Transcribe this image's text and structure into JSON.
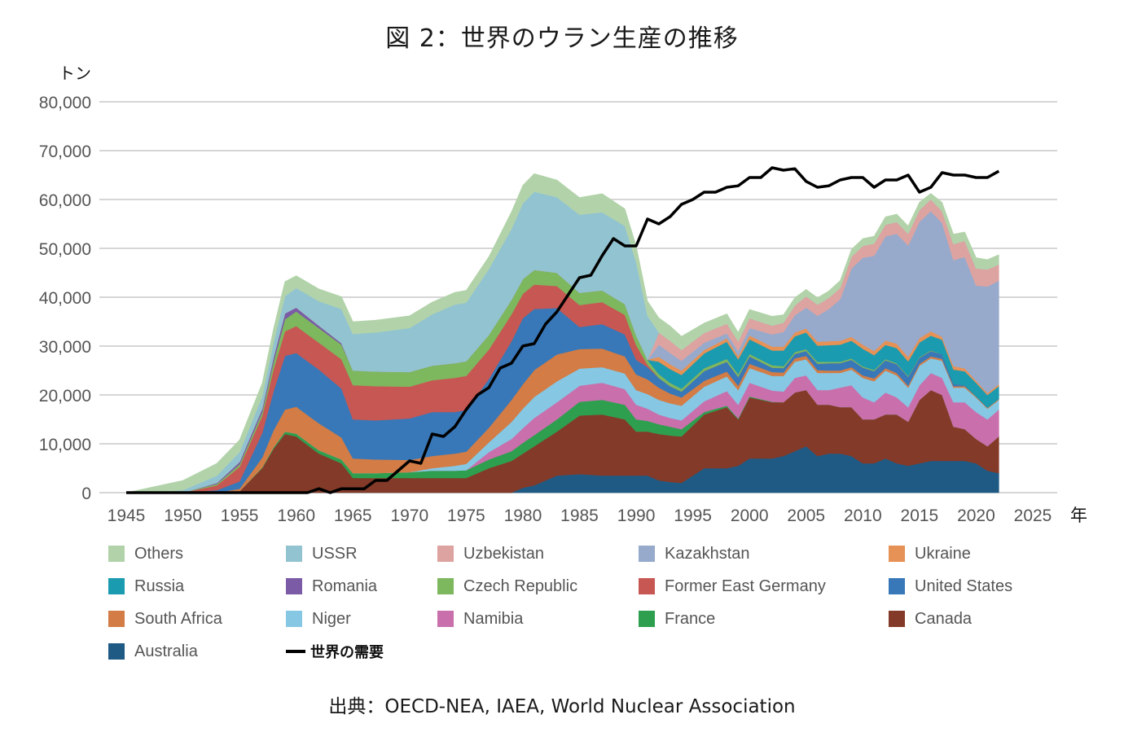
{
  "title": "図 2：世界のウラン生産の推移",
  "source": "出典：OECD-NEA, IAEA, World Nuclear Association",
  "chart_data": {
    "type": "area",
    "stacked": true,
    "title": "図 2：世界のウラン生産の推移",
    "ylabel": "トン",
    "xlabel": "年",
    "ylim": [
      0,
      80000
    ],
    "xlim": [
      1945,
      2025
    ],
    "yticks": [
      "0",
      "10,000",
      "20,000",
      "30,000",
      "40,000",
      "50,000",
      "60,000",
      "70,000",
      "80,000"
    ],
    "ytick_values": [
      0,
      10000,
      20000,
      30000,
      40000,
      50000,
      60000,
      70000,
      80000
    ],
    "xticks": [
      "1945",
      "1950",
      "1955",
      "1960",
      "1965",
      "1970",
      "1975",
      "1980",
      "1985",
      "1990",
      "1995",
      "2000",
      "2005",
      "2010",
      "2015",
      "2020",
      "2025"
    ],
    "xtick_values": [
      1945,
      1950,
      1955,
      1960,
      1965,
      1970,
      1975,
      1980,
      1985,
      1990,
      1995,
      2000,
      2005,
      2010,
      2015,
      2020,
      2025
    ],
    "grid": true,
    "legend_position": "bottom",
    "x": [
      1945,
      1947,
      1950,
      1953,
      1955,
      1957,
      1958,
      1959,
      1960,
      1962,
      1964,
      1965,
      1967,
      1970,
      1972,
      1974,
      1975,
      1977,
      1979,
      1980,
      1981,
      1983,
      1985,
      1987,
      1989,
      1990,
      1991,
      1992,
      1993,
      1994,
      1996,
      1998,
      1999,
      2000,
      2002,
      2003,
      2004,
      2005,
      2006,
      2007,
      2008,
      2009,
      2010,
      2011,
      2012,
      2013,
      2014,
      2015,
      2016,
      2017,
      2018,
      2019,
      2020,
      2021,
      2022
    ],
    "series": [
      {
        "name": "Australia",
        "color": "#1f5a85",
        "values": [
          0,
          0,
          0,
          0,
          0,
          0,
          0,
          0,
          0,
          0,
          0,
          0,
          0,
          0,
          0,
          0,
          0,
          0,
          0,
          1000,
          1500,
          3500,
          3800,
          3500,
          3500,
          3500,
          3500,
          2500,
          2200,
          2000,
          5000,
          5000,
          5500,
          7000,
          7000,
          7500,
          8500,
          9500,
          7500,
          8000,
          8000,
          7500,
          6000,
          6000,
          7000,
          6000,
          5500,
          6000,
          6500,
          6500,
          6500,
          6500,
          6000,
          4500,
          4000
        ]
      },
      {
        "name": "Canada",
        "color": "#843a28",
        "values": [
          0,
          0,
          0,
          0,
          300,
          5000,
          9000,
          12000,
          11500,
          8000,
          6000,
          3000,
          3000,
          3000,
          3000,
          3000,
          3000,
          5000,
          6500,
          7000,
          8000,
          9000,
          12000,
          12500,
          11500,
          9000,
          9000,
          9500,
          9500,
          9500,
          11000,
          12500,
          9500,
          12500,
          11500,
          11000,
          12000,
          11500,
          10500,
          10000,
          9500,
          10000,
          9000,
          9000,
          9000,
          10000,
          9000,
          13000,
          14500,
          13500,
          7000,
          6500,
          5000,
          5000,
          7500
        ]
      },
      {
        "name": "France",
        "color": "#2e9f4f",
        "values": [
          0,
          0,
          0,
          0,
          0,
          200,
          300,
          500,
          600,
          700,
          800,
          1000,
          1000,
          1200,
          1500,
          1500,
          1600,
          1800,
          2000,
          2200,
          2300,
          2500,
          2800,
          3000,
          3000,
          2500,
          2200,
          2000,
          1800,
          1500,
          500,
          300,
          200,
          200,
          100,
          0,
          0,
          0,
          0,
          0,
          0,
          0,
          0,
          0,
          0,
          0,
          0,
          0,
          0,
          0,
          0,
          0,
          0,
          0,
          0
        ]
      },
      {
        "name": "Namibia",
        "color": "#c96fac",
        "values": [
          0,
          0,
          0,
          0,
          0,
          0,
          0,
          0,
          0,
          0,
          0,
          0,
          0,
          0,
          0,
          0,
          0,
          1500,
          2500,
          3000,
          3500,
          3500,
          3300,
          3500,
          3200,
          3000,
          2500,
          2000,
          1800,
          1800,
          2200,
          3000,
          2800,
          2800,
          2300,
          2200,
          3000,
          3000,
          3000,
          3000,
          4000,
          4500,
          4500,
          3500,
          4500,
          3500,
          3000,
          3000,
          3500,
          3500,
          5000,
          5500,
          5500,
          5500,
          5500
        ]
      },
      {
        "name": "Niger",
        "color": "#86c7e3",
        "values": [
          0,
          0,
          0,
          0,
          0,
          0,
          0,
          0,
          0,
          0,
          0,
          0,
          0,
          0,
          500,
          1000,
          1300,
          2000,
          3500,
          4000,
          4300,
          4300,
          3500,
          3200,
          3200,
          3000,
          3000,
          3000,
          3000,
          3000,
          3000,
          3000,
          3000,
          3000,
          3000,
          3200,
          3300,
          3300,
          3500,
          3500,
          3000,
          3200,
          4000,
          4300,
          4500,
          4500,
          4000,
          4000,
          3000,
          3500,
          3000,
          3000,
          3000,
          2200,
          2000
        ]
      },
      {
        "name": "South Africa",
        "color": "#d37c45",
        "values": [
          0,
          0,
          0,
          0,
          500,
          2000,
          3500,
          4500,
          5500,
          5500,
          4500,
          3000,
          2800,
          2500,
          2500,
          2500,
          2500,
          3000,
          4500,
          5000,
          5500,
          5500,
          4000,
          3800,
          3500,
          3200,
          3000,
          2500,
          2000,
          1700,
          1200,
          1000,
          900,
          900,
          800,
          700,
          700,
          700,
          600,
          500,
          500,
          500,
          500,
          600,
          500,
          500,
          400,
          400,
          400,
          400,
          300,
          300,
          200,
          200,
          200
        ]
      },
      {
        "name": "United States",
        "color": "#3878b8",
        "values": [
          0,
          0,
          0,
          500,
          1500,
          5000,
          8000,
          11000,
          11000,
          11000,
          10000,
          8000,
          8000,
          8500,
          9000,
          8500,
          8500,
          10000,
          12000,
          13500,
          12500,
          9500,
          4500,
          5000,
          4500,
          3000,
          2500,
          2000,
          1500,
          1200,
          2000,
          2000,
          1800,
          1500,
          900,
          900,
          900,
          1000,
          1300,
          1500,
          1500,
          1500,
          1600,
          1500,
          1600,
          1800,
          1800,
          1200,
          1100,
          900,
          500,
          150,
          0,
          0,
          0
        ]
      },
      {
        "name": "Former East Germany",
        "color": "#c75753",
        "values": [
          0,
          0,
          0,
          1000,
          3000,
          3500,
          4500,
          5000,
          5500,
          5500,
          6000,
          7000,
          7000,
          6500,
          6500,
          7000,
          7000,
          6000,
          5500,
          5000,
          5000,
          4500,
          4500,
          4500,
          4000,
          3000,
          500,
          0,
          0,
          0,
          0,
          0,
          0,
          0,
          0,
          0,
          0,
          0,
          0,
          0,
          0,
          0,
          0,
          0,
          0,
          0,
          0,
          0,
          0,
          0,
          0,
          0,
          0,
          0,
          0
        ]
      },
      {
        "name": "Czech Republic",
        "color": "#7db75e",
        "values": [
          0,
          0,
          0,
          300,
          500,
          800,
          1500,
          2500,
          3000,
          3000,
          3000,
          3000,
          3000,
          3000,
          3000,
          3000,
          3000,
          3000,
          3000,
          3000,
          3000,
          2700,
          2500,
          2400,
          2200,
          2000,
          1000,
          800,
          700,
          600,
          600,
          600,
          600,
          500,
          500,
          400,
          400,
          400,
          400,
          300,
          300,
          300,
          250,
          250,
          250,
          200,
          200,
          150,
          150,
          0,
          0,
          0,
          0,
          0,
          0
        ]
      },
      {
        "name": "Romania",
        "color": "#7b5ba6",
        "values": [
          0,
          0,
          0,
          200,
          500,
          700,
          1000,
          1200,
          800,
          500,
          300,
          0,
          0,
          0,
          0,
          0,
          0,
          0,
          0,
          0,
          0,
          0,
          0,
          0,
          0,
          0,
          0,
          0,
          0,
          0,
          0,
          0,
          0,
          0,
          0,
          0,
          0,
          0,
          0,
          0,
          0,
          0,
          0,
          0,
          0,
          0,
          0,
          0,
          0,
          0,
          0,
          0,
          0,
          0,
          0
        ]
      },
      {
        "name": "Russia",
        "color": "#1a9bb0",
        "values": [
          0,
          0,
          0,
          0,
          0,
          0,
          0,
          0,
          0,
          0,
          0,
          0,
          0,
          0,
          0,
          0,
          0,
          0,
          0,
          0,
          0,
          0,
          0,
          0,
          0,
          0,
          0,
          2500,
          2800,
          2800,
          3000,
          3500,
          3000,
          3000,
          3000,
          3200,
          3200,
          3400,
          3300,
          3400,
          3500,
          3600,
          3600,
          3000,
          2900,
          3100,
          3000,
          3000,
          3000,
          3000,
          2900,
          2900,
          2800,
          2600,
          2600
        ]
      },
      {
        "name": "Ukraine",
        "color": "#e69155",
        "values": [
          0,
          0,
          0,
          0,
          0,
          0,
          0,
          0,
          0,
          0,
          0,
          0,
          0,
          0,
          0,
          0,
          0,
          0,
          0,
          0,
          0,
          0,
          0,
          0,
          0,
          0,
          0,
          1000,
          1000,
          900,
          700,
          700,
          700,
          800,
          800,
          800,
          800,
          800,
          800,
          800,
          800,
          800,
          850,
          850,
          900,
          900,
          900,
          900,
          900,
          600,
          700,
          600,
          400,
          400,
          400
        ]
      },
      {
        "name": "Kazakhstan",
        "color": "#97aacc",
        "values": [
          0,
          0,
          0,
          0,
          0,
          0,
          0,
          0,
          0,
          0,
          0,
          0,
          0,
          0,
          0,
          0,
          0,
          0,
          0,
          0,
          0,
          0,
          0,
          0,
          0,
          0,
          0,
          2500,
          2300,
          2000,
          1500,
          1000,
          1000,
          1500,
          2500,
          3000,
          3500,
          4300,
          5300,
          6600,
          8500,
          14000,
          17800,
          19500,
          21300,
          22500,
          22800,
          23800,
          24600,
          23300,
          21700,
          22800,
          19500,
          21800,
          21200
        ]
      },
      {
        "name": "Uzbekistan",
        "color": "#dda3a1",
        "values": [
          0,
          0,
          0,
          0,
          0,
          0,
          0,
          0,
          0,
          0,
          0,
          0,
          0,
          0,
          0,
          0,
          0,
          0,
          0,
          0,
          0,
          0,
          0,
          0,
          0,
          0,
          0,
          2500,
          2500,
          2200,
          2000,
          2000,
          2000,
          2000,
          1800,
          1900,
          2000,
          2300,
          2300,
          2300,
          2300,
          2400,
          2400,
          2500,
          2400,
          2400,
          2400,
          2400,
          2400,
          2400,
          3300,
          3300,
          3500,
          3500,
          3300
        ]
      },
      {
        "name": "USSR",
        "color": "#92c3d0",
        "values": [
          0,
          0,
          500,
          1500,
          2000,
          2500,
          3000,
          3500,
          4000,
          5000,
          7000,
          7500,
          8000,
          9000,
          10500,
          12000,
          12000,
          13500,
          14500,
          15500,
          16000,
          15500,
          16000,
          16000,
          16000,
          15000,
          9000,
          0,
          0,
          0,
          0,
          0,
          0,
          0,
          0,
          0,
          0,
          0,
          0,
          0,
          0,
          0,
          0,
          0,
          0,
          0,
          0,
          0,
          0,
          0,
          0,
          0,
          0,
          0,
          0
        ]
      },
      {
        "name": "Others",
        "color": "#b2d3aa",
        "values": [
          0,
          1000,
          2000,
          2500,
          2500,
          2700,
          2800,
          3000,
          2500,
          2500,
          2500,
          2500,
          2500,
          2500,
          2500,
          2500,
          2500,
          2500,
          3500,
          3700,
          3700,
          3500,
          3500,
          3800,
          3500,
          3300,
          3000,
          3000,
          3000,
          2800,
          2000,
          2000,
          1800,
          1800,
          1900,
          1600,
          1600,
          1400,
          1400,
          1400,
          1500,
          1500,
          1500,
          1500,
          1600,
          1600,
          1600,
          1600,
          1200,
          1800,
          2000,
          1800,
          2200,
          2000,
          2000
        ]
      }
    ],
    "demand": {
      "name": "世界の需要",
      "color": "#000000",
      "x": [
        1945,
        1950,
        1955,
        1960,
        1961,
        1962,
        1963,
        1964,
        1965,
        1966,
        1967,
        1968,
        1969,
        1970,
        1971,
        1972,
        1973,
        1974,
        1975,
        1976,
        1977,
        1978,
        1979,
        1980,
        1981,
        1982,
        1983,
        1984,
        1985,
        1986,
        1987,
        1988,
        1989,
        1990,
        1991,
        1992,
        1993,
        1994,
        1995,
        1996,
        1997,
        1998,
        1999,
        2000,
        2001,
        2002,
        2003,
        2004,
        2005,
        2006,
        2007,
        2008,
        2009,
        2010,
        2011,
        2012,
        2013,
        2014,
        2015,
        2016,
        2017,
        2018,
        2019,
        2020,
        2021,
        2022
      ],
      "values": [
        0,
        0,
        0,
        0,
        0,
        800,
        0,
        800,
        800,
        800,
        2500,
        2500,
        4500,
        6500,
        6000,
        12000,
        11500,
        13500,
        17000,
        20000,
        21500,
        25500,
        26500,
        30000,
        30500,
        34500,
        37000,
        40500,
        44000,
        44500,
        48500,
        52000,
        50500,
        50500,
        56000,
        55000,
        56500,
        59000,
        60000,
        61500,
        61500,
        62500,
        62800,
        64500,
        64500,
        66500,
        66000,
        66300,
        63700,
        62500,
        62800,
        64000,
        64500,
        64500,
        62500,
        64000,
        64000,
        65000,
        61500,
        62500,
        65500,
        65000,
        65000,
        64500,
        64500,
        65800
      ]
    },
    "legend": [
      {
        "name": "Others",
        "type": "area"
      },
      {
        "name": "USSR",
        "type": "area"
      },
      {
        "name": "Uzbekistan",
        "type": "area"
      },
      {
        "name": "Kazakhstan",
        "type": "area"
      },
      {
        "name": "Ukraine",
        "type": "area"
      },
      {
        "name": "Russia",
        "type": "area"
      },
      {
        "name": "Romania",
        "type": "area"
      },
      {
        "name": "Czech Republic",
        "type": "area"
      },
      {
        "name": "Former East Germany",
        "type": "area"
      },
      {
        "name": "United States",
        "type": "area"
      },
      {
        "name": "South Africa",
        "type": "area"
      },
      {
        "name": "Niger",
        "type": "area"
      },
      {
        "name": "Namibia",
        "type": "area"
      },
      {
        "name": "France",
        "type": "area"
      },
      {
        "name": "Canada",
        "type": "area"
      },
      {
        "name": "Australia",
        "type": "area"
      },
      {
        "name": "世界の需要",
        "type": "line"
      }
    ]
  }
}
